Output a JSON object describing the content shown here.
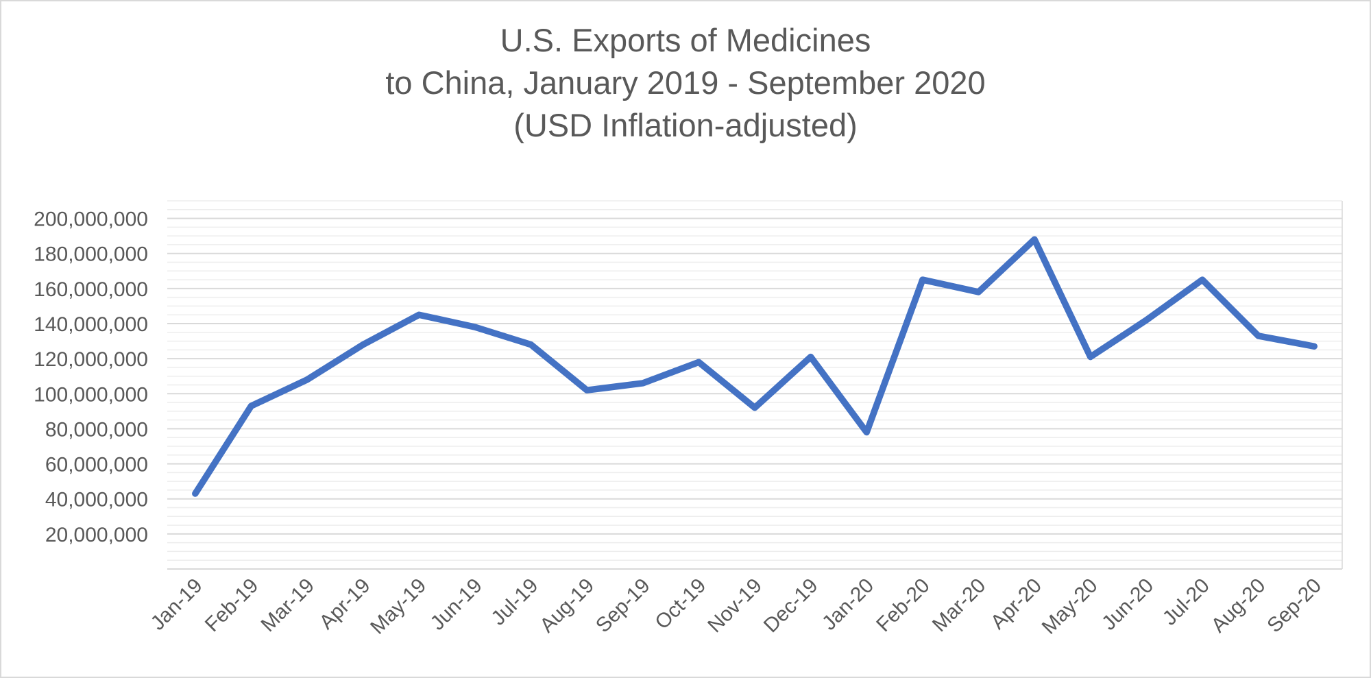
{
  "chart": {
    "background_color": "#ffffff",
    "border_color": "#d9d9d9",
    "text_color": "#595959"
  },
  "chart_data": {
    "type": "line",
    "title_lines": [
      "U.S. Exports of Medicines",
      "to China, January 2019 - September 2020",
      "(USD Inflation-adjusted)"
    ],
    "title": "U.S. Exports of Medicines to China, January 2019 - September 2020 (USD Inflation-adjusted)",
    "xlabel": "",
    "ylabel": "",
    "legend": "none",
    "grid": {
      "major_color": "#d9d9d9",
      "minor_color": "#ededed",
      "major_on": true,
      "minor_on": true
    },
    "series_color": "#4472C4",
    "series_name": "U.S. exports of medicines to China (USD, inflation-adjusted)",
    "y_axis": {
      "min": 0,
      "max": 210000000,
      "major_unit": 20000000,
      "minor_unit": 5000000,
      "visible_tick_labels": [
        "200,000,000",
        "180,000,000",
        "160,000,000",
        "140,000,000",
        "120,000,000",
        "100,000,000",
        "80,000,000",
        "60,000,000",
        "40,000,000",
        "20,000,000"
      ]
    },
    "categories": [
      "Jan-19",
      "Feb-19",
      "Mar-19",
      "Apr-19",
      "May-19",
      "Jun-19",
      "Jul-19",
      "Aug-19",
      "Sep-19",
      "Oct-19",
      "Nov-19",
      "Dec-19",
      "Jan-20",
      "Feb-20",
      "Mar-20",
      "Apr-20",
      "May-20",
      "Jun-20",
      "Jul-20",
      "Aug-20",
      "Sep-20"
    ],
    "values": [
      43000000,
      93000000,
      108000000,
      128000000,
      145000000,
      138000000,
      128000000,
      102000000,
      106000000,
      118000000,
      92000000,
      121000000,
      78000000,
      165000000,
      158000000,
      188000000,
      121000000,
      142000000,
      165000000,
      133000000,
      127000000
    ]
  }
}
